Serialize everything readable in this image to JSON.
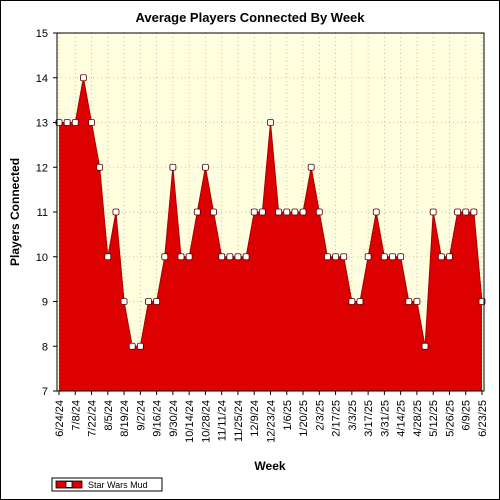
{
  "chart_data": {
    "type": "area",
    "title": "Average Players Connected By Week",
    "xlabel": "Week",
    "ylabel": "Players Connected",
    "ylim": [
      7,
      15
    ],
    "yticks": [
      7,
      8,
      9,
      10,
      11,
      12,
      13,
      14,
      15
    ],
    "grid": true,
    "legend_position": "bottom-left",
    "colors": {
      "fill": "#dd0000",
      "line": "#aa0000",
      "plot_bg": "#ffffe0",
      "marker": "#ffffff"
    },
    "x_tick_labels": [
      "6/24/24",
      "7/8/24",
      "7/22/24",
      "8/5/24",
      "8/19/24",
      "9/2/24",
      "9/16/24",
      "9/30/24",
      "10/14/24",
      "10/28/24",
      "11/11/24",
      "11/25/24",
      "12/9/24",
      "12/23/24",
      "1/6/25",
      "1/20/25",
      "2/3/25",
      "2/17/25",
      "3/3/25",
      "3/17/25",
      "3/31/25",
      "4/14/25",
      "4/28/25",
      "5/12/25",
      "5/26/25",
      "6/9/25",
      "6/23/25"
    ],
    "series": [
      {
        "name": "Star Wars Mud",
        "values": [
          13,
          13,
          13,
          14,
          13,
          12,
          10,
          11,
          9,
          8,
          8,
          9,
          9,
          10,
          12,
          10,
          10,
          11,
          12,
          11,
          10,
          10,
          10,
          10,
          11,
          11,
          13,
          11,
          11,
          11,
          11,
          12,
          11,
          10,
          10,
          10,
          9,
          9,
          10,
          11,
          10,
          10,
          10,
          9,
          9,
          8,
          11,
          10,
          10,
          11,
          11,
          11,
          9
        ]
      }
    ]
  }
}
